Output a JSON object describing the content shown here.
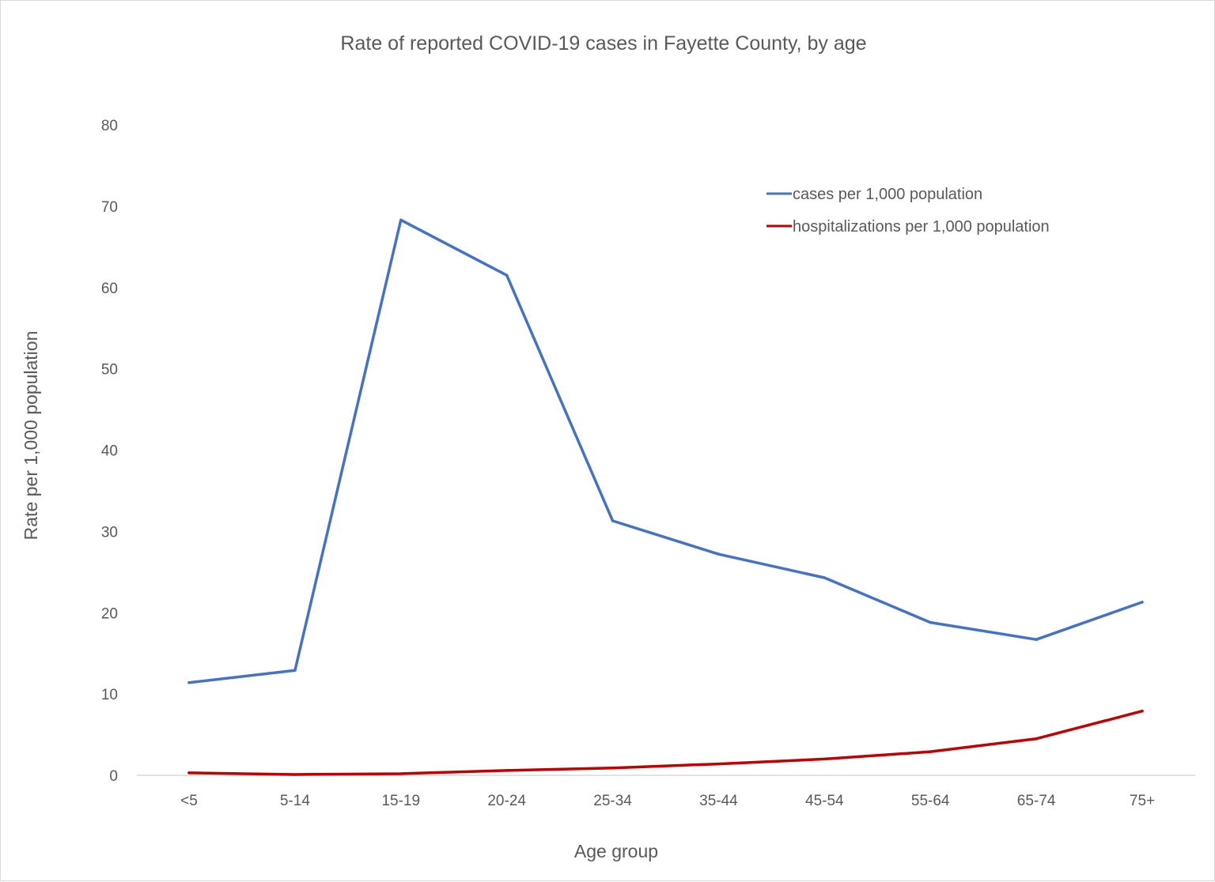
{
  "chart_data": {
    "type": "line",
    "title": "Rate of reported COVID-19 cases in Fayette County, by age",
    "xlabel": "Age group",
    "ylabel": "Rate per 1,000 population",
    "ylim": [
      0,
      80
    ],
    "yticks": [
      0,
      10,
      20,
      30,
      40,
      50,
      60,
      70,
      80
    ],
    "grid": false,
    "legend_position": "top-right",
    "categories": [
      "<5",
      "5-14",
      "15-19",
      "20-24",
      "25-34",
      "35-44",
      "45-54",
      "55-64",
      "65-74",
      "75+"
    ],
    "series": [
      {
        "name": "cases per 1,000 population",
        "color": "#4472c4",
        "values": [
          11.4,
          12.9,
          68.3,
          61.5,
          31.3,
          27.2,
          24.3,
          18.8,
          16.7,
          21.3
        ]
      },
      {
        "name": "hospitalizations per 1,000 population",
        "color": "#c00000",
        "values": [
          0.3,
          0.1,
          0.2,
          0.6,
          0.9,
          1.4,
          2.0,
          2.9,
          4.5,
          7.9
        ]
      }
    ]
  }
}
